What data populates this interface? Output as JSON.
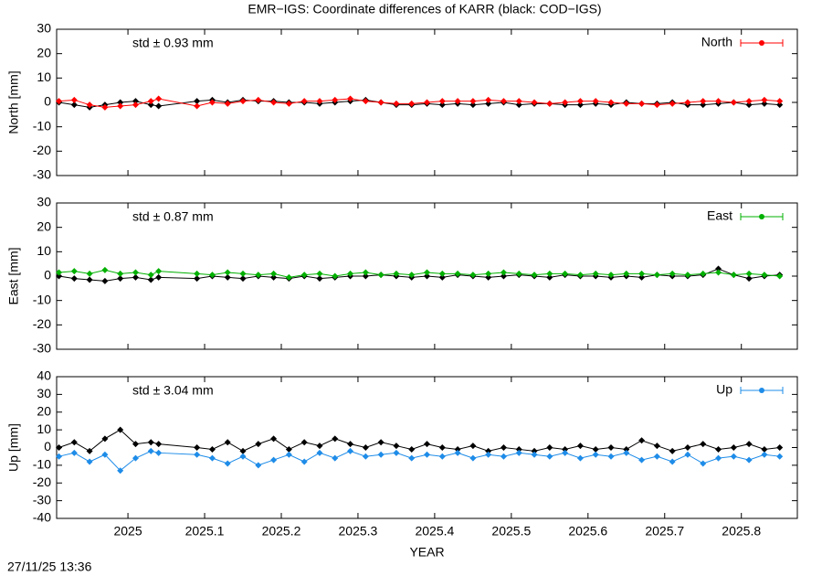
{
  "title": "EMR−IGS: Coordinate differences of KARR (black: COD−IGS)",
  "timestamp": "27/11/25 13:36",
  "chart_data": [
    {
      "type": "line",
      "y_label": "North [mm]",
      "annotation": "std ± 0.93 mm",
      "annotation_color": "#ff0000",
      "x": [
        2024.91,
        2024.93,
        2024.95,
        2024.97,
        2024.99,
        2025.01,
        2025.03,
        2025.04,
        2025.09,
        2025.11,
        2025.13,
        2025.15,
        2025.17,
        2025.19,
        2025.21,
        2025.23,
        2025.25,
        2025.27,
        2025.29,
        2025.31,
        2025.33,
        2025.35,
        2025.37,
        2025.39,
        2025.41,
        2025.43,
        2025.45,
        2025.47,
        2025.49,
        2025.51,
        2025.53,
        2025.55,
        2025.57,
        2025.59,
        2025.61,
        2025.63,
        2025.65,
        2025.67,
        2025.69,
        2025.71,
        2025.73,
        2025.75,
        2025.77,
        2025.79,
        2025.81,
        2025.83,
        2025.85
      ],
      "series": [
        {
          "color": "#000000",
          "values": [
            0,
            -1,
            -2,
            -1,
            0,
            0.5,
            -1,
            -1.5,
            0.5,
            1,
            0,
            1,
            0.5,
            0.5,
            0,
            0,
            -0.5,
            0,
            0.5,
            1,
            0,
            -1,
            -1,
            -0.5,
            -1,
            -0.5,
            -1,
            -0.5,
            0,
            -1,
            -0.5,
            -0.5,
            -1,
            -1,
            -0.5,
            -1,
            0,
            -0.5,
            -0.5,
            0,
            -1,
            -1,
            -0.5,
            0,
            -1,
            -0.5,
            -1
          ]
        },
        {
          "name": "North",
          "color": "#ff0000",
          "values": [
            0.5,
            1,
            -1,
            -2,
            -1.5,
            -1,
            0.5,
            1.5,
            -1.5,
            0,
            -0.5,
            0.5,
            1,
            0,
            -0.5,
            0.5,
            0.5,
            1,
            1.5,
            0.5,
            0,
            -0.5,
            -0.5,
            0,
            0.5,
            0.5,
            0.5,
            1,
            0.5,
            0.5,
            0,
            -0.5,
            0,
            0.5,
            0.5,
            0,
            -0.5,
            -0.5,
            -1,
            -0.5,
            0,
            0.5,
            0.5,
            0,
            0.5,
            1,
            0.5
          ]
        }
      ],
      "xlim": [
        2024.907,
        2025.873
      ],
      "xticks": [
        2025,
        2025.1,
        2025.2,
        2025.3,
        2025.4,
        2025.5,
        2025.6,
        2025.7,
        2025.8
      ],
      "ylim": [
        -30,
        30
      ],
      "yticks": [
        -30,
        -20,
        -10,
        0,
        10,
        20,
        30
      ],
      "legend": "top-right"
    },
    {
      "type": "line",
      "y_label": "East [mm]",
      "annotation": "std ± 0.87 mm",
      "annotation_color": "#00b000",
      "x": [
        2024.91,
        2024.93,
        2024.95,
        2024.97,
        2024.99,
        2025.01,
        2025.03,
        2025.04,
        2025.09,
        2025.11,
        2025.13,
        2025.15,
        2025.17,
        2025.19,
        2025.21,
        2025.23,
        2025.25,
        2025.27,
        2025.29,
        2025.31,
        2025.33,
        2025.35,
        2025.37,
        2025.39,
        2025.41,
        2025.43,
        2025.45,
        2025.47,
        2025.49,
        2025.51,
        2025.53,
        2025.55,
        2025.57,
        2025.59,
        2025.61,
        2025.63,
        2025.65,
        2025.67,
        2025.69,
        2025.71,
        2025.73,
        2025.75,
        2025.77,
        2025.79,
        2025.81,
        2025.83,
        2025.85
      ],
      "series": [
        {
          "color": "#000000",
          "values": [
            0,
            -1,
            -1.5,
            -2,
            -1,
            -0.5,
            -1.5,
            -0.5,
            -1,
            0,
            -0.5,
            -1,
            0,
            -0.5,
            -1,
            0,
            -1,
            -0.5,
            0,
            0,
            0.5,
            0,
            -0.5,
            0,
            -0.5,
            0.5,
            0,
            -0.5,
            0,
            0.5,
            0,
            -0.5,
            0.5,
            0,
            0,
            -0.5,
            0,
            -0.5,
            0.5,
            0,
            0,
            0.5,
            3,
            0.5,
            -1,
            0,
            0.5
          ]
        },
        {
          "name": "East",
          "color": "#00b000",
          "values": [
            1.5,
            2,
            1,
            2.5,
            1,
            1.5,
            0.5,
            2,
            1,
            0.5,
            1.5,
            1,
            0.5,
            1,
            -0.5,
            0.5,
            1,
            0,
            1,
            1.5,
            0.5,
            1,
            0.5,
            1.5,
            1,
            1,
            0.5,
            1,
            1.5,
            1,
            0.5,
            1,
            1,
            0.5,
            1,
            0.5,
            1,
            1,
            0.5,
            1,
            0.5,
            1,
            1.5,
            0.5,
            1,
            0.5,
            0
          ]
        }
      ],
      "xlim": [
        2024.907,
        2025.873
      ],
      "xticks": [
        2025,
        2025.1,
        2025.2,
        2025.3,
        2025.4,
        2025.5,
        2025.6,
        2025.7,
        2025.8
      ],
      "ylim": [
        -30,
        30
      ],
      "yticks": [
        -30,
        -20,
        -10,
        0,
        10,
        20,
        30
      ],
      "legend": "top-right"
    },
    {
      "type": "line",
      "y_label": "Up [mm]",
      "x_label": "YEAR",
      "annotation": "std ± 3.04 mm",
      "annotation_color": "#1e8ce8",
      "x": [
        2024.91,
        2024.93,
        2024.95,
        2024.97,
        2024.99,
        2025.01,
        2025.03,
        2025.04,
        2025.09,
        2025.11,
        2025.13,
        2025.15,
        2025.17,
        2025.19,
        2025.21,
        2025.23,
        2025.25,
        2025.27,
        2025.29,
        2025.31,
        2025.33,
        2025.35,
        2025.37,
        2025.39,
        2025.41,
        2025.43,
        2025.45,
        2025.47,
        2025.49,
        2025.51,
        2025.53,
        2025.55,
        2025.57,
        2025.59,
        2025.61,
        2025.63,
        2025.65,
        2025.67,
        2025.69,
        2025.71,
        2025.73,
        2025.75,
        2025.77,
        2025.79,
        2025.81,
        2025.83,
        2025.85
      ],
      "series": [
        {
          "color": "#000000",
          "values": [
            0,
            3,
            -2,
            5,
            10,
            2,
            3,
            2,
            0,
            -1,
            3,
            -2,
            2,
            5,
            -1,
            3,
            1,
            5,
            2,
            0,
            3,
            1,
            -1,
            2,
            0,
            -1,
            1,
            -2,
            0,
            -1,
            -2,
            0,
            -1,
            1,
            -1,
            0,
            -1,
            4,
            1,
            -2,
            0,
            2,
            -1,
            0,
            2,
            -1,
            0
          ]
        },
        {
          "name": "Up",
          "color": "#1e8ce8",
          "values": [
            -5,
            -3,
            -8,
            -4,
            -13,
            -6,
            -2,
            -3,
            -4,
            -6,
            -9,
            -5,
            -10,
            -7,
            -4,
            -8,
            -3,
            -6,
            -2,
            -5,
            -4,
            -3,
            -6,
            -4,
            -5,
            -3,
            -6,
            -4,
            -5,
            -3,
            -4,
            -5,
            -3,
            -6,
            -4,
            -5,
            -3,
            -7,
            -5,
            -8,
            -4,
            -9,
            -6,
            -5,
            -7,
            -4,
            -5
          ]
        }
      ],
      "xlim": [
        2024.907,
        2025.873
      ],
      "xticks": [
        2025,
        2025.1,
        2025.2,
        2025.3,
        2025.4,
        2025.5,
        2025.6,
        2025.7,
        2025.8
      ],
      "ylim": [
        -40,
        40
      ],
      "yticks": [
        -40,
        -30,
        -20,
        -10,
        0,
        10,
        20,
        30,
        40
      ],
      "legend": "top-right"
    }
  ]
}
